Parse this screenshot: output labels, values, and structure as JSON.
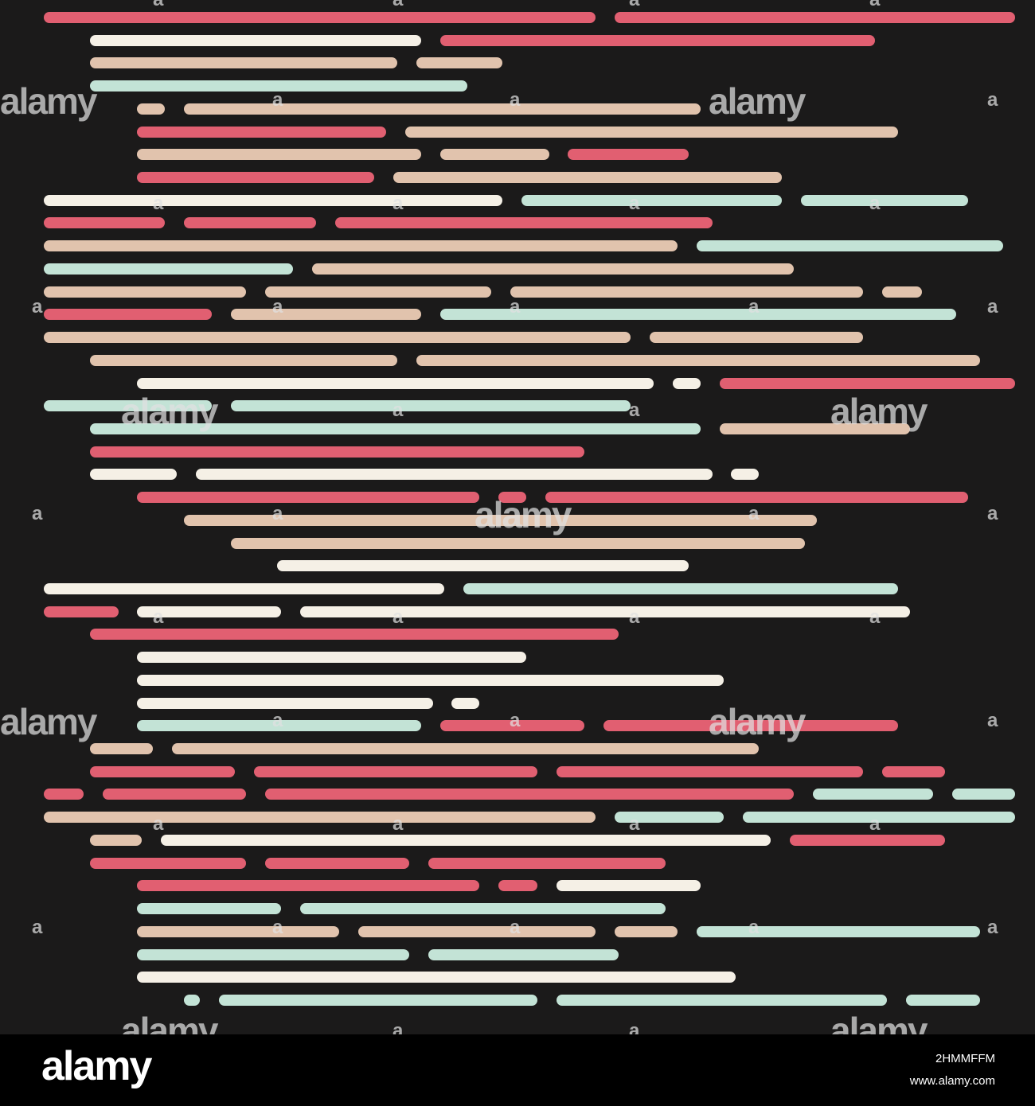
{
  "palette": {
    "background": "#1b1a1a",
    "red": "#e15f71",
    "cream": "#f5f0e6",
    "peach": "#e1c3ad",
    "mint": "#c3e3d6"
  },
  "pattern": {
    "description_colors": [
      "red",
      "cream",
      "peach",
      "mint"
    ],
    "rows": [
      [
        [
          55,
          748,
          "red"
        ],
        [
          772,
          1275,
          "red"
        ]
      ],
      [
        [
          113,
          529,
          "cream"
        ],
        [
          553,
          1099,
          "red"
        ]
      ],
      [
        [
          113,
          499,
          "peach"
        ],
        [
          523,
          631,
          "peach"
        ]
      ],
      [
        [
          113,
          587,
          "mint"
        ]
      ],
      [
        [
          172,
          207,
          "peach"
        ],
        [
          231,
          880,
          "peach"
        ]
      ],
      [
        [
          172,
          485,
          "red"
        ],
        [
          509,
          1128,
          "peach"
        ]
      ],
      [
        [
          172,
          529,
          "peach"
        ],
        [
          553,
          690,
          "peach"
        ],
        [
          713,
          865,
          "red"
        ]
      ],
      [
        [
          172,
          470,
          "red"
        ],
        [
          494,
          982,
          "peach"
        ]
      ],
      [
        [
          55,
          631,
          "cream"
        ],
        [
          655,
          982,
          "mint"
        ],
        [
          1006,
          1216,
          "mint"
        ]
      ],
      [
        [
          55,
          207,
          "red"
        ],
        [
          231,
          397,
          "red"
        ],
        [
          421,
          895,
          "red"
        ]
      ],
      [
        [
          55,
          851,
          "peach"
        ],
        [
          875,
          1260,
          "mint"
        ]
      ],
      [
        [
          55,
          368,
          "mint"
        ],
        [
          392,
          997,
          "peach"
        ]
      ],
      [
        [
          55,
          309,
          "peach"
        ],
        [
          333,
          617,
          "peach"
        ],
        [
          641,
          1084,
          "peach"
        ],
        [
          1108,
          1158,
          "peach"
        ]
      ],
      [
        [
          55,
          266,
          "red"
        ],
        [
          290,
          529,
          "peach"
        ],
        [
          553,
          1201,
          "mint"
        ]
      ],
      [
        [
          55,
          792,
          "peach"
        ],
        [
          816,
          1084,
          "peach"
        ]
      ],
      [
        [
          113,
          499,
          "peach"
        ],
        [
          523,
          1231,
          "peach"
        ]
      ],
      [
        [
          172,
          821,
          "cream"
        ],
        [
          845,
          880,
          "cream"
        ],
        [
          904,
          1275,
          "red"
        ]
      ],
      [
        [
          55,
          266,
          "mint"
        ],
        [
          290,
          792,
          "mint"
        ]
      ],
      [
        [
          113,
          880,
          "mint"
        ],
        [
          904,
          1143,
          "peach"
        ]
      ],
      [
        [
          113,
          734,
          "red"
        ]
      ],
      [
        [
          113,
          222,
          "cream"
        ],
        [
          246,
          895,
          "cream"
        ],
        [
          918,
          953,
          "cream"
        ]
      ],
      [
        [
          172,
          602,
          "red"
        ],
        [
          626,
          661,
          "red"
        ],
        [
          685,
          1216,
          "red"
        ]
      ],
      [
        [
          231,
          1026,
          "peach"
        ]
      ],
      [
        [
          290,
          1011,
          "peach"
        ]
      ],
      [
        [
          348,
          865,
          "cream"
        ]
      ],
      [
        [
          55,
          558,
          "cream"
        ],
        [
          582,
          1128,
          "mint"
        ]
      ],
      [
        [
          55,
          149,
          "red"
        ],
        [
          172,
          353,
          "cream"
        ],
        [
          377,
          1143,
          "cream"
        ]
      ],
      [
        [
          113,
          777,
          "red"
        ]
      ],
      [
        [
          172,
          661,
          "cream"
        ]
      ],
      [
        [
          172,
          909,
          "cream"
        ]
      ],
      [
        [
          172,
          544,
          "cream"
        ],
        [
          567,
          602,
          "cream"
        ]
      ],
      [
        [
          172,
          529,
          "mint"
        ],
        [
          553,
          734,
          "red"
        ],
        [
          758,
          1128,
          "red"
        ]
      ],
      [
        [
          113,
          192,
          "peach"
        ],
        [
          216,
          953,
          "peach"
        ]
      ],
      [
        [
          113,
          295,
          "red"
        ],
        [
          319,
          675,
          "red"
        ],
        [
          699,
          1084,
          "red"
        ],
        [
          1108,
          1187,
          "red"
        ]
      ],
      [
        [
          55,
          105,
          "red"
        ],
        [
          129,
          309,
          "red"
        ],
        [
          333,
          997,
          "red"
        ],
        [
          1021,
          1172,
          "mint"
        ],
        [
          1196,
          1275,
          "mint"
        ]
      ],
      [
        [
          55,
          748,
          "peach"
        ],
        [
          772,
          909,
          "mint"
        ],
        [
          933,
          1275,
          "mint"
        ]
      ],
      [
        [
          113,
          178,
          "peach"
        ],
        [
          202,
          968,
          "cream"
        ],
        [
          992,
          1187,
          "red"
        ]
      ],
      [
        [
          113,
          309,
          "red"
        ],
        [
          333,
          514,
          "red"
        ],
        [
          538,
          836,
          "red"
        ]
      ],
      [
        [
          172,
          602,
          "red"
        ],
        [
          626,
          675,
          "red"
        ],
        [
          699,
          880,
          "cream"
        ]
      ],
      [
        [
          172,
          353,
          "mint"
        ],
        [
          377,
          836,
          "mint"
        ]
      ],
      [
        [
          172,
          426,
          "peach"
        ],
        [
          450,
          748,
          "peach"
        ],
        [
          772,
          851,
          "peach"
        ],
        [
          875,
          1231,
          "mint"
        ]
      ],
      [
        [
          172,
          514,
          "mint"
        ],
        [
          538,
          777,
          "mint"
        ]
      ],
      [
        [
          172,
          924,
          "cream"
        ]
      ],
      [
        [
          231,
          251,
          "mint"
        ],
        [
          275,
          675,
          "mint"
        ],
        [
          699,
          1114,
          "mint"
        ],
        [
          1138,
          1231,
          "mint"
        ]
      ]
    ]
  },
  "watermark": {
    "word": "alamy",
    "small_glyph": "a"
  },
  "footer": {
    "logo": "alamy",
    "image_id": "2HMMFFM",
    "url": "www.alamy.com"
  }
}
